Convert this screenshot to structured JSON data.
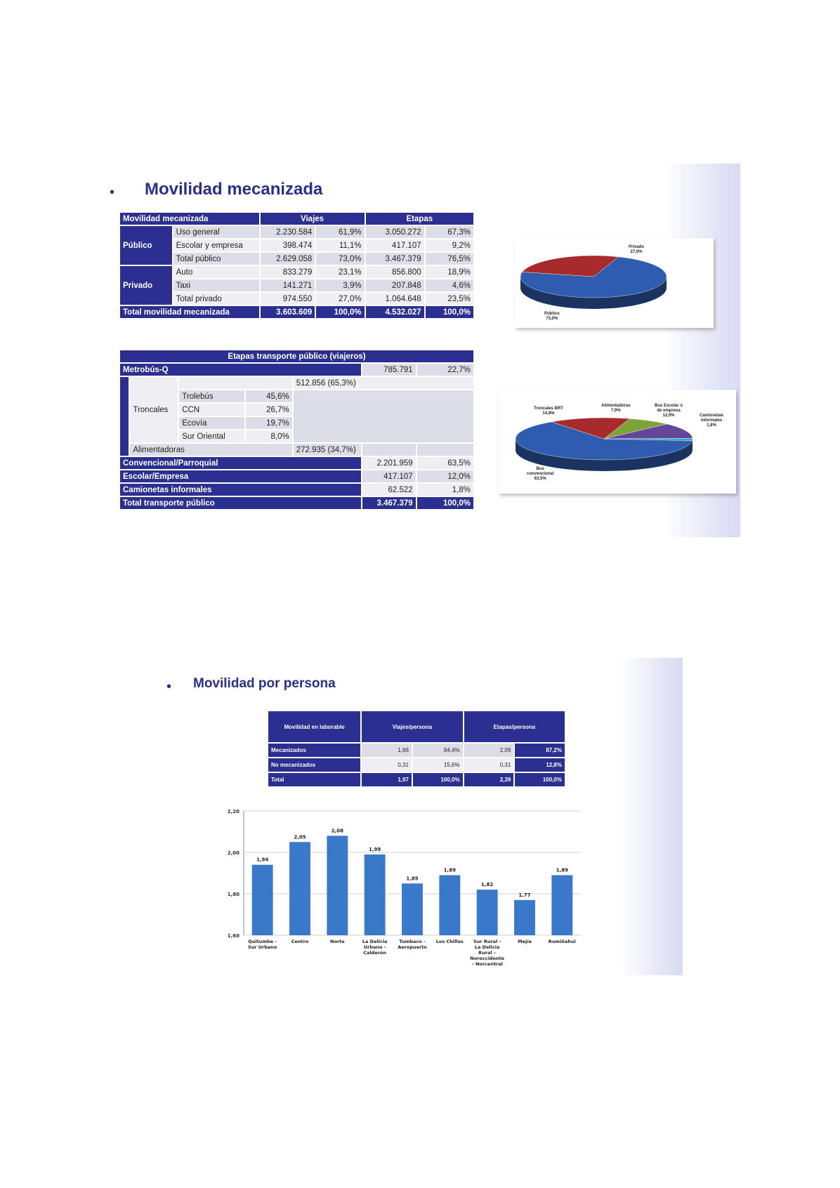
{
  "slide1": {
    "bullet": "•",
    "title": "Movilidad mecanizada",
    "table1": {
      "header": {
        "label": "Movilidad mecanizada",
        "viajes": "Viajes",
        "etapas": "Etapas"
      },
      "groups": [
        {
          "name": "Público",
          "rows": [
            {
              "label": "Uso general",
              "v": "2.230.584",
              "vp": "61,9%",
              "e": "3.050.272",
              "ep": "67,3%"
            },
            {
              "label": "Escolar y empresa",
              "v": "398.474",
              "vp": "11,1%",
              "e": "417.107",
              "ep": "9,2%"
            },
            {
              "label": "Total público",
              "v": "2.629.058",
              "vp": "73,0%",
              "e": "3.467.379",
              "ep": "76,5%"
            }
          ]
        },
        {
          "name": "Privado",
          "rows": [
            {
              "label": "Auto",
              "v": "833.279",
              "vp": "23,1%",
              "e": "856.800",
              "ep": "18,9%"
            },
            {
              "label": "Taxi",
              "v": "141.271",
              "vp": "3,9%",
              "e": "207.848",
              "ep": "4,6%"
            },
            {
              "label": "Total privado",
              "v": "974.550",
              "vp": "27,0%",
              "e": "1.064.648",
              "ep": "23,5%"
            }
          ]
        }
      ],
      "total": {
        "label": "Total movilidad mecanizada",
        "v": "3.603.609",
        "vp": "100,0%",
        "e": "4.532.027",
        "ep": "100,0%"
      }
    },
    "table2": {
      "header": "Etapas  transporte público (viajeros)",
      "metrobus": {
        "label": "Metrobús-Q",
        "v": "785.791",
        "p": "22,7%"
      },
      "troncales": {
        "label": "Troncales",
        "value": "512.856 (65,3%)",
        "items": [
          {
            "label": "Trolebús",
            "p": "45,6%"
          },
          {
            "label": "CCN",
            "p": "26,7%"
          },
          {
            "label": "Ecovía",
            "p": "19,7%"
          },
          {
            "label": "Sur Oriental",
            "p": "8,0%"
          }
        ]
      },
      "alimentadoras": {
        "label": "Alimentadoras",
        "value": "272.935 (34,7%)"
      },
      "rows": [
        {
          "label": "Convencional/Parroquial",
          "v": "2.201.959",
          "p": "63,5%"
        },
        {
          "label": "Escolar/Empresa",
          "v": "417.107",
          "p": "12,0%"
        },
        {
          "label": "Camionetas informales",
          "v": "62.522",
          "p": "1,8%"
        }
      ],
      "total": {
        "label": "Total transporte público",
        "v": "3.467.379",
        "p": "100,0%"
      }
    },
    "pie1": {
      "slices": [
        {
          "name": "Público",
          "value": 73.0,
          "label": "Público\n73,0%",
          "color": "#2f5cae"
        },
        {
          "name": "Privado",
          "value": 27.0,
          "label": "Privado\n27,0%",
          "color": "#a92a2c"
        }
      ]
    },
    "pie2": {
      "slices": [
        {
          "name": "Bus convencional",
          "value": 63.5,
          "label": "Bus\nconvencional\n63,5%",
          "color": "#2f5cae"
        },
        {
          "name": "Troncales BRT",
          "value": 14.8,
          "label": "Troncales BRT\n14,8%",
          "color": "#a92a2c"
        },
        {
          "name": "Alimentadoras",
          "value": 7.9,
          "label": "Alimentadoras\n7,9%",
          "color": "#7ea33a"
        },
        {
          "name": "Bus Escolar o de empresa",
          "value": 12.0,
          "label": "Bus Escolar o\nde empresa\n12,0%",
          "color": "#63459a"
        },
        {
          "name": "Camionetas informales",
          "value": 1.8,
          "label": "Camionetas\ninformales\n1,8%",
          "color": "#2ba7c8"
        }
      ]
    }
  },
  "slide2": {
    "bullet": "•",
    "title": "Movilidad por persona",
    "table": {
      "header": {
        "label": "Movilidad en laborable",
        "viajes": "Viajes/persona",
        "etapas": "Etapas/persona"
      },
      "rows": [
        {
          "label": "Mecanizados",
          "v": "1,66",
          "vp": "84,4%",
          "e": "2,09",
          "ep": "87,2%"
        },
        {
          "label": "No mecanizados",
          "v": "0,31",
          "vp": "15,6%",
          "e": "0,31",
          "ep": "12,8%"
        }
      ],
      "total": {
        "label": "Total",
        "v": "1,97",
        "vp": "100,0%",
        "e": "2,39",
        "ep": "100,0%"
      }
    }
  },
  "chart_data": [
    {
      "type": "pie",
      "categories": [
        "Público",
        "Privado"
      ],
      "values": [
        73.0,
        27.0
      ],
      "labels": [
        "Público 73,0%",
        "Privado 27,0%"
      ]
    },
    {
      "type": "pie",
      "categories": [
        "Bus convencional",
        "Troncales BRT",
        "Alimentadoras",
        "Bus Escolar o de empresa",
        "Camionetas informales"
      ],
      "values": [
        63.5,
        14.8,
        7.9,
        12.0,
        1.8
      ],
      "labels": [
        "Bus convencional 63,5%",
        "Troncales BRT 14,8%",
        "Alimentadoras 7,9%",
        "Bus Escolar o de empresa 12,0%",
        "Camionetas informales 1,8%"
      ]
    },
    {
      "type": "bar",
      "categories": [
        "Quitumbe - Sur Urbano",
        "Centro",
        "Norte",
        "La Delicia Urbano - Calderón",
        "Tumbaco - Aeropuerto",
        "Los Chillos",
        "Sur Rural - La Delicia Rural – Noroccidente – Norcentral",
        "Mejía",
        "Rumiñahui"
      ],
      "category_lines": [
        [
          "Quitumbe -",
          "Sur Urbano"
        ],
        [
          "Centro"
        ],
        [
          "Norte"
        ],
        [
          "La Delicia",
          "Urbano -",
          "Calderón"
        ],
        [
          "Tumbaco -",
          "Aeropuerto"
        ],
        [
          "Los Chillos"
        ],
        [
          "Sur Rural -",
          "La Delicia",
          "Rural –",
          "Noroccidente",
          "– Norcentral"
        ],
        [
          "Mejía"
        ],
        [
          "Rumiñahui"
        ]
      ],
      "values": [
        1.94,
        2.05,
        2.08,
        1.99,
        1.85,
        1.89,
        1.82,
        1.77,
        1.89
      ],
      "value_labels": [
        "1,94",
        "2,05",
        "2,08",
        "1,99",
        "1,85",
        "1,89",
        "1,82",
        "1,77",
        "1,89"
      ],
      "ylim": [
        1.6,
        2.2
      ],
      "yticks": [
        1.6,
        1.8,
        2.0,
        2.2
      ],
      "ytick_labels": [
        "1,60",
        "1,80",
        "2,00",
        "2,20"
      ],
      "grid": true,
      "bar_color": "#3a78c9"
    }
  ]
}
